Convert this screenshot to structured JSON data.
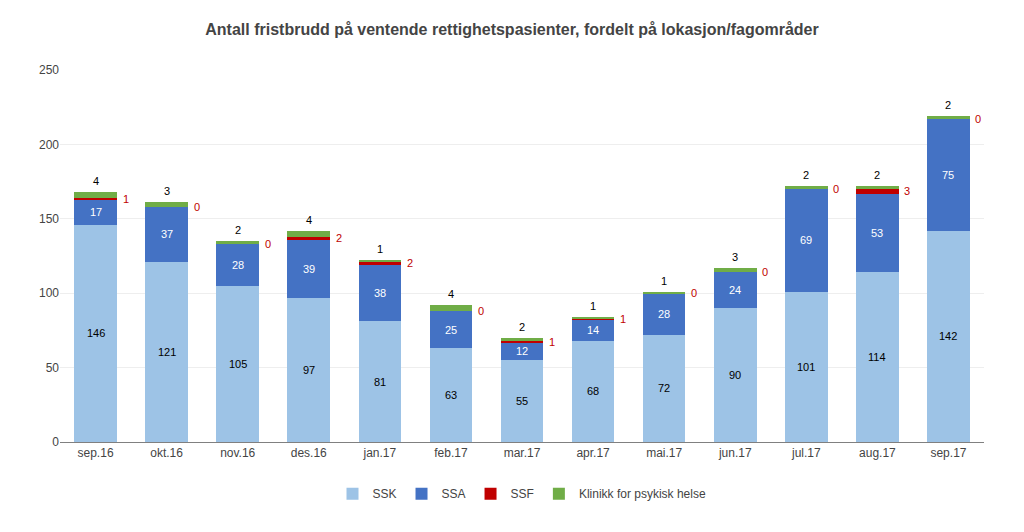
{
  "chart_data": {
    "type": "bar",
    "stacked": true,
    "title": "Antall fristbrudd på ventende rettighetspasienter, fordelt på lokasjon/fagområder",
    "categories": [
      "sep.16",
      "okt.16",
      "nov.16",
      "des.16",
      "jan.17",
      "feb.17",
      "mar.17",
      "apr.17",
      "mai.17",
      "jun.17",
      "jul.17",
      "aug.17",
      "sep.17"
    ],
    "series": [
      {
        "name": "SSK",
        "color": "#9dc3e6",
        "values": [
          146,
          121,
          105,
          97,
          81,
          63,
          55,
          68,
          72,
          90,
          101,
          114,
          142
        ]
      },
      {
        "name": "SSA",
        "color": "#4472c4",
        "values": [
          17,
          37,
          28,
          39,
          38,
          25,
          12,
          14,
          28,
          24,
          69,
          53,
          75
        ]
      },
      {
        "name": "SSF",
        "color": "#c00000",
        "values": [
          1,
          0,
          0,
          2,
          2,
          0,
          1,
          1,
          0,
          0,
          0,
          3,
          0
        ]
      },
      {
        "name": "Klinikk for psykisk helse",
        "color": "#70ad47",
        "values": [
          4,
          3,
          2,
          4,
          1,
          4,
          2,
          1,
          1,
          3,
          2,
          2,
          2
        ]
      }
    ],
    "ylim": [
      0,
      250
    ],
    "yticks": [
      0,
      50,
      100,
      150,
      200,
      250
    ],
    "grid": true,
    "legend": "bottom",
    "data_labels": true
  }
}
